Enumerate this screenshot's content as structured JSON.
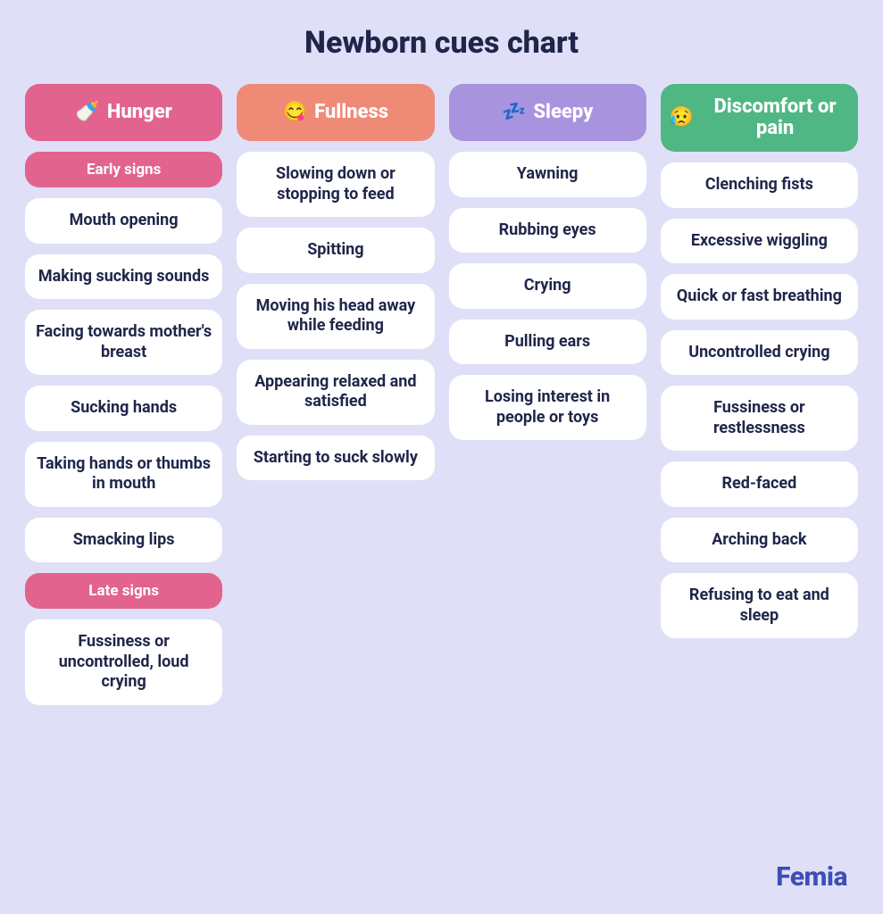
{
  "layout": {
    "background_color": "#dfe0f7",
    "title_color": "#20264a",
    "title_fontsize": 34,
    "item_bg": "#ffffff",
    "item_text_color": "#20264a",
    "item_fontsize": 18,
    "header_fontsize": 22,
    "subheader_fontsize": 17,
    "brand_color": "#3f4db8",
    "brand_fontsize": 30
  },
  "title": "Newborn cues chart",
  "brand": "Femia",
  "columns": [
    {
      "key": "hunger",
      "label": "Hunger",
      "icon": "🍼",
      "header_bg": "#e2638d",
      "groups": [
        {
          "subheader": "Early signs",
          "subheader_bg": "#e2638d",
          "items": [
            "Mouth opening",
            "Making sucking sounds",
            "Facing towards mother's breast",
            "Sucking hands",
            "Taking hands or thumbs in mouth",
            "Smacking lips"
          ]
        },
        {
          "subheader": "Late signs",
          "subheader_bg": "#e2638d",
          "items": [
            "Fussiness or uncontrolled, loud crying"
          ]
        }
      ]
    },
    {
      "key": "fullness",
      "label": "Fullness",
      "icon": "😋",
      "header_bg": "#ef8a77",
      "groups": [
        {
          "items": [
            "Slowing down or stopping to feed",
            "Spitting",
            "Moving his head away while feeding",
            "Appearing relaxed and satisfied",
            "Starting to suck slowly"
          ]
        }
      ]
    },
    {
      "key": "sleepy",
      "label": "Sleepy",
      "icon": "💤",
      "header_bg": "#a893de",
      "groups": [
        {
          "items": [
            "Yawning",
            "Rubbing eyes",
            "Crying",
            "Pulling ears",
            "Losing interest in people or toys"
          ]
        }
      ]
    },
    {
      "key": "discomfort",
      "label": "Discomfort or pain",
      "icon": "😥",
      "header_bg": "#4fb783",
      "groups": [
        {
          "items": [
            "Clenching fists",
            "Excessive wiggling",
            "Quick or fast breathing",
            "Uncontrolled crying",
            "Fussiness or restlessness",
            "Red-faced",
            "Arching back",
            "Refusing to eat and sleep"
          ]
        }
      ]
    }
  ]
}
